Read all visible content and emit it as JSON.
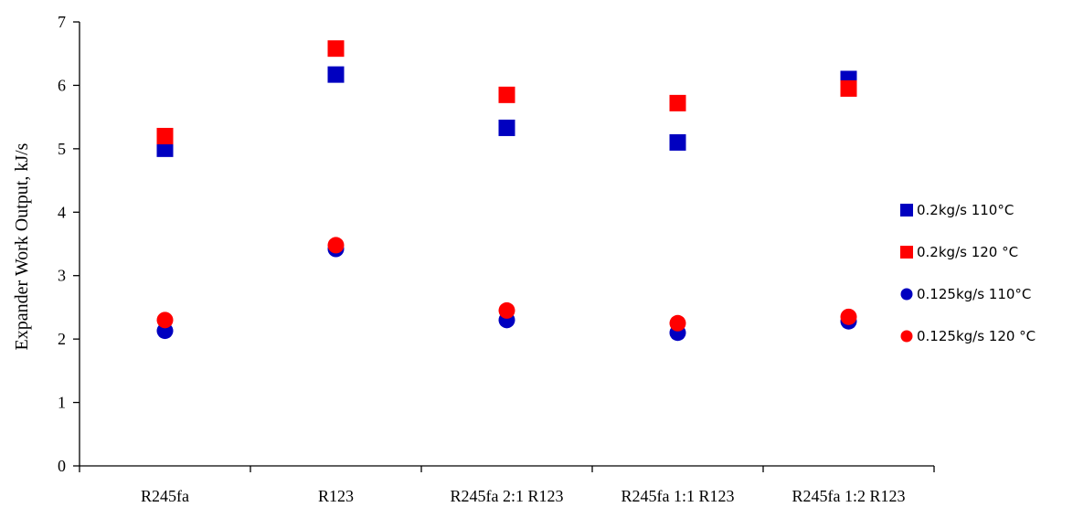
{
  "chart_data": {
    "type": "scatter",
    "title": "",
    "xlabel": "",
    "ylabel": "Expander Work Output, kJ/s",
    "ylim": [
      0,
      7
    ],
    "yticks": [
      0,
      1,
      2,
      3,
      4,
      5,
      6,
      7
    ],
    "grid": false,
    "legend_position": "right",
    "categories": [
      "R245fa",
      "R123",
      "R245fa 2:1 R123",
      "R245fa 1:1 R123",
      "R245fa 1:2 R123"
    ],
    "series": [
      {
        "name": "0.2kg/s 110°C",
        "marker": "square",
        "color": "#0000c0",
        "values": [
          5.0,
          6.17,
          5.33,
          5.1,
          6.1
        ]
      },
      {
        "name": "0.2kg/s 120 °C",
        "marker": "square",
        "color": "#ff0000",
        "values": [
          5.2,
          6.58,
          5.85,
          5.72,
          5.95
        ]
      },
      {
        "name": "0.125kg/s 110°C",
        "marker": "circle",
        "color": "#0000c0",
        "values": [
          2.13,
          3.42,
          2.3,
          2.1,
          2.28
        ]
      },
      {
        "name": "0.125kg/s 120 °C",
        "marker": "circle",
        "color": "#ff0000",
        "values": [
          2.3,
          3.48,
          2.45,
          2.25,
          2.35
        ]
      }
    ]
  }
}
